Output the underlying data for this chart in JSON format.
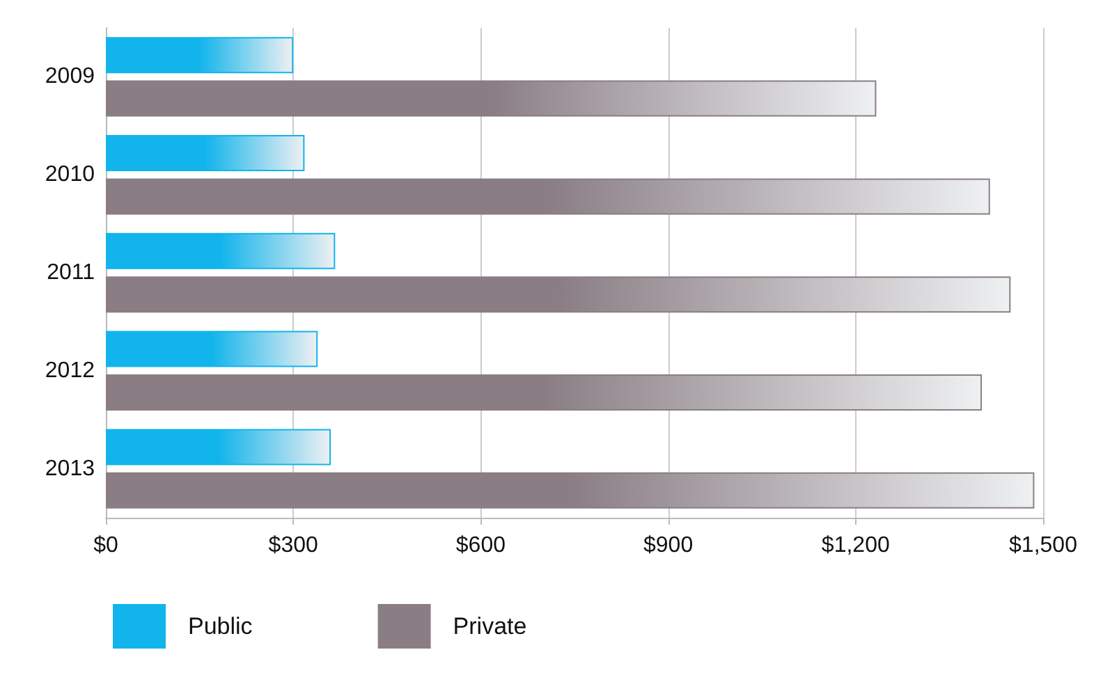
{
  "chart_data": {
    "type": "bar",
    "orientation": "horizontal",
    "categories": [
      "2009",
      "2010",
      "2011",
      "2012",
      "2013"
    ],
    "series": [
      {
        "name": "Public",
        "color": "#12b4ec",
        "values": [
          300,
          318,
          367,
          339,
          360
        ]
      },
      {
        "name": "Private",
        "color": "#8a7e84",
        "values": [
          1233,
          1415,
          1448,
          1402,
          1486
        ]
      }
    ],
    "xlim": [
      0,
      1500
    ],
    "xticks": [
      {
        "value": 0,
        "label": "$0"
      },
      {
        "value": 300,
        "label": "$300"
      },
      {
        "value": 600,
        "label": "$600"
      },
      {
        "value": 900,
        "label": "$900"
      },
      {
        "value": 1200,
        "label": "$1,200"
      },
      {
        "value": 1500,
        "label": "$1,500"
      }
    ],
    "grid": "x",
    "legend": "bottom left"
  }
}
